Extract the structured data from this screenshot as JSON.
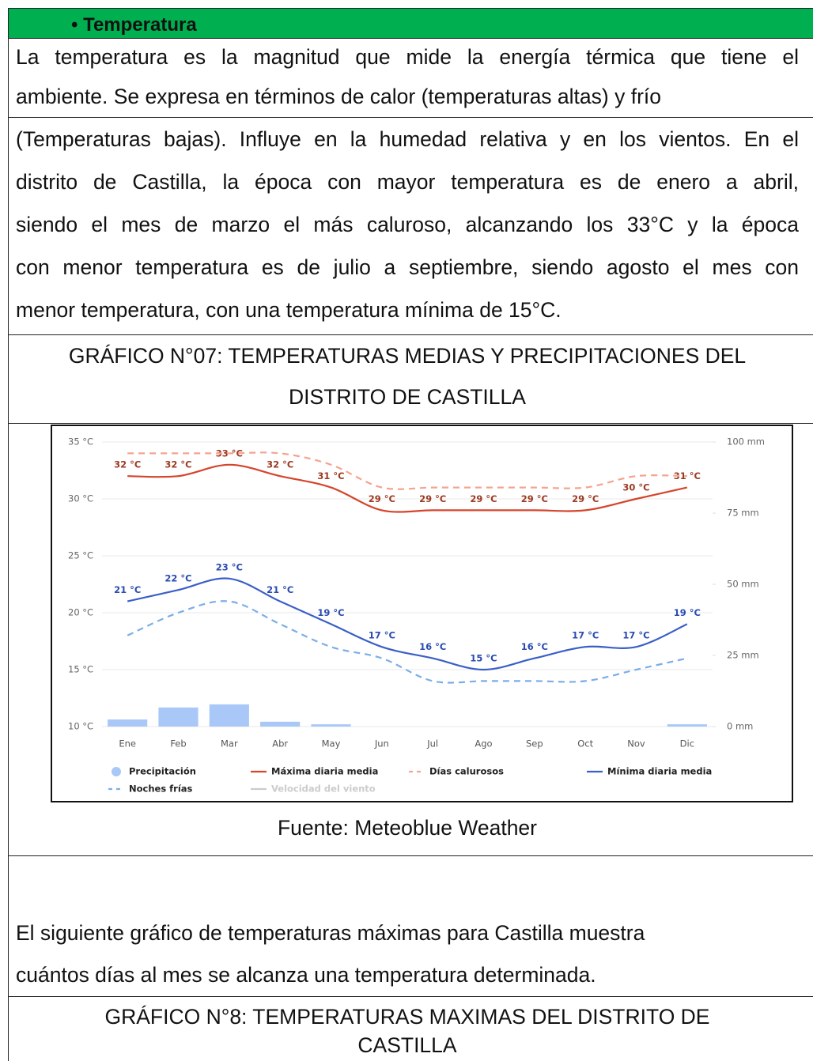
{
  "header": "• Temperatura",
  "intro": {
    "lines": [
      "La temperatura es la magnitud que mide la energía térmica que tiene el",
      "ambiente. Se expresa en términos de calor (temperaturas altas) y frío"
    ]
  },
  "body": {
    "lines": [
      "(Temperaturas bajas). Influye en la humedad relativa y en los vientos. En el",
      "distrito de Castilla, la época con mayor temperatura es de enero a abril,",
      "siendo el mes de marzo el más caluroso, alcanzando los 33°C y la época",
      "con menor temperatura es de julio a septiembre, siendo agosto el mes con",
      "menor temperatura, con una temperatura mínima de 15°C."
    ]
  },
  "figure1_caption": [
    "GRÁFICO N°07: TEMPERATURAS MEDIAS Y PRECIPITACIONES DEL",
    "DISTRITO DE CASTILLA"
  ],
  "figure1_source": "Fuente: Meteoblue Weather",
  "text2": {
    "lines": [
      "El siguiente gráfico de temperaturas máximas para Castilla muestra",
      "cuántos días al mes se alcanza una temperatura determinada."
    ]
  },
  "figure2_caption": [
    "GRÁFICO N°8: TEMPERATURAS MAXIMAS DEL DISTRITO DE",
    "CASTILLA"
  ],
  "chart_data": {
    "type": "line",
    "categories": [
      "Ene",
      "Feb",
      "Mar",
      "Abr",
      "May",
      "Jun",
      "Jul",
      "Ago",
      "Sep",
      "Oct",
      "Nov",
      "Dic"
    ],
    "ylim": [
      10,
      35
    ],
    "yticks": [
      {
        "value": 10,
        "label": "10 °C"
      },
      {
        "value": 15,
        "label": "15 °C"
      },
      {
        "value": 20,
        "label": "20 °C"
      },
      {
        "value": 25,
        "label": "25 °C"
      },
      {
        "value": 30,
        "label": "30 °C"
      },
      {
        "value": 35,
        "label": "35 °C"
      }
    ],
    "y2lim": [
      0,
      100
    ],
    "y2ticks": [
      {
        "value": 0,
        "label": "0 mm"
      },
      {
        "value": 25,
        "label": "25 mm"
      },
      {
        "value": 50,
        "label": "50 mm"
      },
      {
        "value": 75,
        "label": "75 mm"
      },
      {
        "value": 100,
        "label": "100 mm"
      }
    ],
    "grid": true,
    "series": [
      {
        "name": "Precipitación",
        "type": "bar",
        "axis": "y2",
        "color": "#a9c8f7",
        "values": [
          2.5,
          6.7,
          7.8,
          1.7,
          0.8,
          0,
          0,
          0,
          0,
          0,
          0,
          0.8
        ]
      },
      {
        "name": "Máxima diaria media",
        "color": "#d5442b",
        "values": [
          32,
          32,
          33,
          32,
          31,
          29,
          29,
          29,
          29,
          29,
          30,
          31
        ],
        "value_labels": [
          "32 °C",
          "32 °C",
          "33 °C",
          "32 °C",
          "31 °C",
          "29 °C",
          "29 °C",
          "29 °C",
          "29 °C",
          "29 °C",
          "30 °C",
          "31 °C"
        ],
        "label_color": "#9c3a22"
      },
      {
        "name": "Días calurosos",
        "color": "#f4a38e",
        "dashed": true,
        "values": [
          34,
          34,
          34,
          34,
          33,
          31,
          31,
          31,
          31,
          31,
          32,
          32
        ]
      },
      {
        "name": "Mínima diaria media",
        "color": "#3a5fc6",
        "values": [
          21,
          22,
          23,
          21,
          19,
          17,
          16,
          15,
          16,
          17,
          17,
          19
        ],
        "value_labels": [
          "21 °C",
          "22 °C",
          "23 °C",
          "21 °C",
          "19 °C",
          "17 °C",
          "16 °C",
          "15 °C",
          "16 °C",
          "17 °C",
          "17 °C",
          "19 °C"
        ],
        "label_color": "#2a4bb0"
      },
      {
        "name": "Noches frías",
        "color": "#7aaee8",
        "dashed": true,
        "values": [
          18,
          20,
          21,
          19,
          17,
          16,
          14,
          14,
          14,
          14,
          15,
          16
        ]
      }
    ],
    "inactive_legend": [
      {
        "name": "Velocidad del viento",
        "color": "#cccccc"
      }
    ]
  }
}
